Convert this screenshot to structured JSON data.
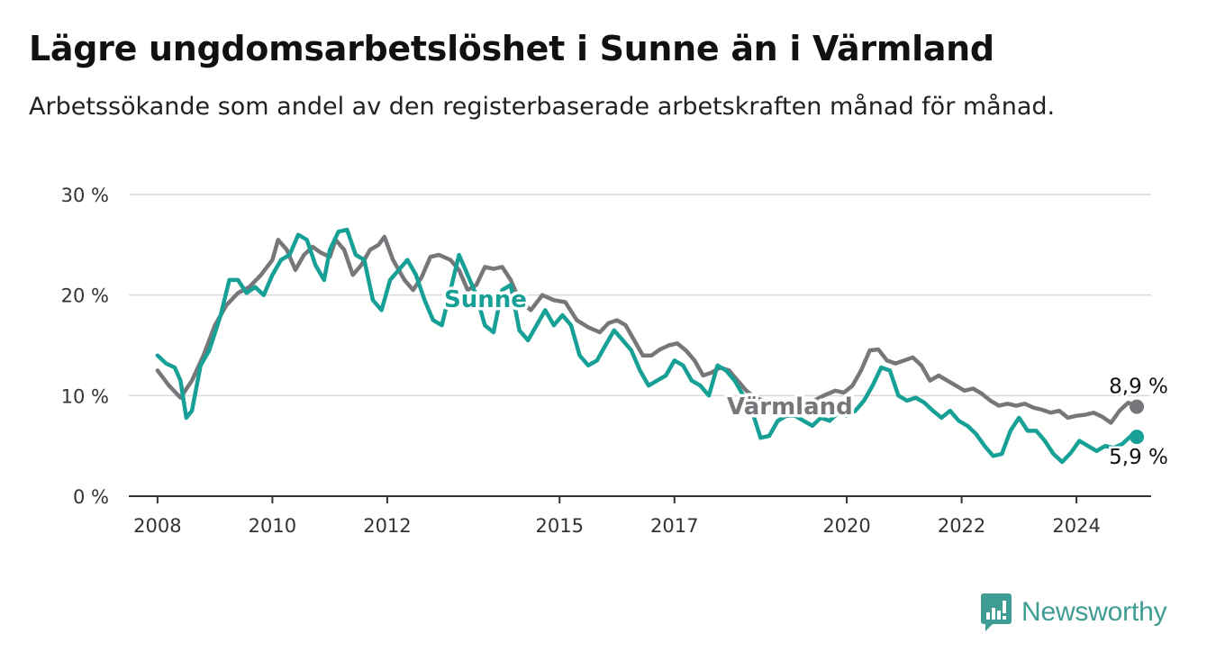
{
  "header": {
    "title": "Lägre ungdomsarbetslöshet i Sunne än i Värmland",
    "subtitle": "Arbetssökande som andel av den registerbaserade arbetskraften månad för månad."
  },
  "brand": {
    "name": "Newsworthy",
    "icon": "newsworthy-logo-icon",
    "color": "#3f9c93"
  },
  "chart_data": {
    "type": "line",
    "title": "Lägre ungdomsarbetslöshet i Sunne än i Värmland",
    "subtitle": "Arbetssökande som andel av den registerbaserade arbetskraften månad för månad.",
    "xlabel": "",
    "ylabel": "",
    "ylim": [
      0,
      30
    ],
    "yticks": [
      0,
      10,
      20,
      30
    ],
    "ytick_labels": [
      "0 %",
      "10 %",
      "20 %",
      "30 %"
    ],
    "xlim": [
      2007.5,
      2025.3
    ],
    "xticks": [
      2008,
      2010,
      2012,
      2015,
      2017,
      2020,
      2022,
      2024
    ],
    "xtick_labels": [
      "2008",
      "2010",
      "2012",
      "2015",
      "2017",
      "2020",
      "2022",
      "2024"
    ],
    "grid": true,
    "legend": "direct-labels",
    "series": [
      {
        "name": "Värmland",
        "color": "#77777b",
        "end_label": "8,9 %",
        "points": [
          [
            2008.0,
            12.5
          ],
          [
            2008.2,
            11.0
          ],
          [
            2008.4,
            9.8
          ],
          [
            2008.6,
            11.5
          ],
          [
            2008.8,
            14.0
          ],
          [
            2009.0,
            17.0
          ],
          [
            2009.2,
            19.0
          ],
          [
            2009.4,
            20.2
          ],
          [
            2009.6,
            20.8
          ],
          [
            2009.8,
            22.0
          ],
          [
            2010.0,
            23.5
          ],
          [
            2010.1,
            25.5
          ],
          [
            2010.25,
            24.5
          ],
          [
            2010.4,
            22.5
          ],
          [
            2010.55,
            24.0
          ],
          [
            2010.7,
            24.8
          ],
          [
            2010.85,
            24.2
          ],
          [
            2011.0,
            23.8
          ],
          [
            2011.1,
            25.5
          ],
          [
            2011.25,
            24.5
          ],
          [
            2011.4,
            22.0
          ],
          [
            2011.55,
            23.0
          ],
          [
            2011.7,
            24.5
          ],
          [
            2011.85,
            25.0
          ],
          [
            2011.95,
            25.8
          ],
          [
            2012.1,
            23.5
          ],
          [
            2012.3,
            21.5
          ],
          [
            2012.45,
            20.5
          ],
          [
            2012.6,
            21.8
          ],
          [
            2012.75,
            23.8
          ],
          [
            2012.9,
            24.0
          ],
          [
            2013.1,
            23.5
          ],
          [
            2013.25,
            22.5
          ],
          [
            2013.4,
            20.5
          ],
          [
            2013.55,
            21.0
          ],
          [
            2013.7,
            22.8
          ],
          [
            2013.85,
            22.6
          ],
          [
            2014.0,
            22.8
          ],
          [
            2014.15,
            21.5
          ],
          [
            2014.3,
            19.5
          ],
          [
            2014.5,
            18.5
          ],
          [
            2014.7,
            20.0
          ],
          [
            2014.9,
            19.5
          ],
          [
            2015.1,
            19.3
          ],
          [
            2015.3,
            17.5
          ],
          [
            2015.5,
            16.8
          ],
          [
            2015.7,
            16.3
          ],
          [
            2015.85,
            17.2
          ],
          [
            2016.0,
            17.5
          ],
          [
            2016.15,
            17.0
          ],
          [
            2016.3,
            15.5
          ],
          [
            2016.45,
            14.0
          ],
          [
            2016.6,
            14.0
          ],
          [
            2016.75,
            14.6
          ],
          [
            2016.9,
            15.0
          ],
          [
            2017.05,
            15.2
          ],
          [
            2017.2,
            14.5
          ],
          [
            2017.35,
            13.5
          ],
          [
            2017.5,
            12.0
          ],
          [
            2017.65,
            12.3
          ],
          [
            2017.8,
            12.8
          ],
          [
            2017.95,
            12.5
          ],
          [
            2018.1,
            11.5
          ],
          [
            2018.25,
            10.5
          ],
          [
            2018.4,
            9.8
          ],
          [
            2018.55,
            9.5
          ],
          [
            2018.7,
            9.0
          ],
          [
            2018.85,
            9.2
          ],
          [
            2019.0,
            9.3
          ],
          [
            2019.2,
            9.5
          ],
          [
            2019.4,
            9.4
          ],
          [
            2019.6,
            10.0
          ],
          [
            2019.8,
            10.5
          ],
          [
            2019.95,
            10.3
          ],
          [
            2020.1,
            11.0
          ],
          [
            2020.25,
            12.5
          ],
          [
            2020.4,
            14.5
          ],
          [
            2020.55,
            14.6
          ],
          [
            2020.7,
            13.5
          ],
          [
            2020.85,
            13.2
          ],
          [
            2021.0,
            13.5
          ],
          [
            2021.15,
            13.8
          ],
          [
            2021.3,
            13.0
          ],
          [
            2021.45,
            11.5
          ],
          [
            2021.6,
            12.0
          ],
          [
            2021.75,
            11.5
          ],
          [
            2021.9,
            11.0
          ],
          [
            2022.05,
            10.5
          ],
          [
            2022.2,
            10.7
          ],
          [
            2022.35,
            10.2
          ],
          [
            2022.5,
            9.5
          ],
          [
            2022.65,
            9.0
          ],
          [
            2022.8,
            9.2
          ],
          [
            2022.95,
            9.0
          ],
          [
            2023.1,
            9.2
          ],
          [
            2023.25,
            8.8
          ],
          [
            2023.4,
            8.6
          ],
          [
            2023.55,
            8.3
          ],
          [
            2023.7,
            8.5
          ],
          [
            2023.85,
            7.8
          ],
          [
            2024.0,
            8.0
          ],
          [
            2024.15,
            8.1
          ],
          [
            2024.3,
            8.3
          ],
          [
            2024.45,
            7.9
          ],
          [
            2024.6,
            7.3
          ],
          [
            2024.75,
            8.5
          ],
          [
            2024.9,
            9.3
          ],
          [
            2025.05,
            8.9
          ]
        ]
      },
      {
        "name": "Sunne",
        "color": "#16a096",
        "end_label": "5,9 %",
        "points": [
          [
            2008.0,
            14.0
          ],
          [
            2008.15,
            13.2
          ],
          [
            2008.3,
            12.8
          ],
          [
            2008.4,
            11.5
          ],
          [
            2008.5,
            7.8
          ],
          [
            2008.6,
            8.5
          ],
          [
            2008.75,
            13.0
          ],
          [
            2008.9,
            14.5
          ],
          [
            2009.1,
            18.0
          ],
          [
            2009.25,
            21.5
          ],
          [
            2009.4,
            21.5
          ],
          [
            2009.55,
            20.2
          ],
          [
            2009.7,
            20.8
          ],
          [
            2009.85,
            20.0
          ],
          [
            2010.0,
            22.0
          ],
          [
            2010.15,
            23.5
          ],
          [
            2010.3,
            24.0
          ],
          [
            2010.45,
            26.0
          ],
          [
            2010.6,
            25.5
          ],
          [
            2010.75,
            23.0
          ],
          [
            2010.9,
            21.5
          ],
          [
            2011.0,
            24.5
          ],
          [
            2011.15,
            26.3
          ],
          [
            2011.3,
            26.5
          ],
          [
            2011.45,
            24.0
          ],
          [
            2011.6,
            23.5
          ],
          [
            2011.75,
            19.5
          ],
          [
            2011.9,
            18.5
          ],
          [
            2012.05,
            21.5
          ],
          [
            2012.2,
            22.5
          ],
          [
            2012.35,
            23.5
          ],
          [
            2012.5,
            22.0
          ],
          [
            2012.65,
            19.5
          ],
          [
            2012.8,
            17.5
          ],
          [
            2012.95,
            17.0
          ],
          [
            2013.1,
            20.5
          ],
          [
            2013.25,
            24.0
          ],
          [
            2013.4,
            22.0
          ],
          [
            2013.55,
            20.0
          ],
          [
            2013.7,
            17.0
          ],
          [
            2013.85,
            16.3
          ],
          [
            2014.0,
            20.5
          ],
          [
            2014.15,
            21.0
          ],
          [
            2014.3,
            16.5
          ],
          [
            2014.45,
            15.5
          ],
          [
            2014.6,
            17.0
          ],
          [
            2014.75,
            18.5
          ],
          [
            2014.9,
            17.0
          ],
          [
            2015.05,
            18.0
          ],
          [
            2015.2,
            17.0
          ],
          [
            2015.35,
            14.0
          ],
          [
            2015.5,
            13.0
          ],
          [
            2015.65,
            13.5
          ],
          [
            2015.8,
            15.0
          ],
          [
            2015.95,
            16.5
          ],
          [
            2016.1,
            15.5
          ],
          [
            2016.25,
            14.5
          ],
          [
            2016.4,
            12.5
          ],
          [
            2016.55,
            11.0
          ],
          [
            2016.7,
            11.5
          ],
          [
            2016.85,
            12.0
          ],
          [
            2017.0,
            13.5
          ],
          [
            2017.15,
            13.0
          ],
          [
            2017.3,
            11.5
          ],
          [
            2017.45,
            11.0
          ],
          [
            2017.6,
            10.0
          ],
          [
            2017.75,
            13.0
          ],
          [
            2017.9,
            12.5
          ],
          [
            2018.05,
            11.5
          ],
          [
            2018.2,
            10.0
          ],
          [
            2018.35,
            8.5
          ],
          [
            2018.5,
            5.8
          ],
          [
            2018.65,
            6.0
          ],
          [
            2018.8,
            7.5
          ],
          [
            2018.95,
            8.0
          ],
          [
            2019.1,
            8.0
          ],
          [
            2019.25,
            7.5
          ],
          [
            2019.4,
            7.0
          ],
          [
            2019.55,
            7.8
          ],
          [
            2019.7,
            7.5
          ],
          [
            2019.85,
            8.3
          ],
          [
            2020.0,
            8.0
          ],
          [
            2020.15,
            8.5
          ],
          [
            2020.3,
            9.5
          ],
          [
            2020.45,
            11.0
          ],
          [
            2020.6,
            12.8
          ],
          [
            2020.75,
            12.5
          ],
          [
            2020.9,
            10.0
          ],
          [
            2021.05,
            9.5
          ],
          [
            2021.2,
            9.8
          ],
          [
            2021.35,
            9.3
          ],
          [
            2021.5,
            8.5
          ],
          [
            2021.65,
            7.8
          ],
          [
            2021.8,
            8.5
          ],
          [
            2021.95,
            7.5
          ],
          [
            2022.1,
            7.0
          ],
          [
            2022.25,
            6.2
          ],
          [
            2022.4,
            5.0
          ],
          [
            2022.55,
            4.0
          ],
          [
            2022.7,
            4.2
          ],
          [
            2022.85,
            6.5
          ],
          [
            2023.0,
            7.8
          ],
          [
            2023.15,
            6.5
          ],
          [
            2023.3,
            6.5
          ],
          [
            2023.45,
            5.5
          ],
          [
            2023.6,
            4.2
          ],
          [
            2023.75,
            3.4
          ],
          [
            2023.9,
            4.3
          ],
          [
            2024.05,
            5.5
          ],
          [
            2024.2,
            5.0
          ],
          [
            2024.35,
            4.5
          ],
          [
            2024.5,
            5.0
          ],
          [
            2024.65,
            4.8
          ],
          [
            2024.8,
            5.2
          ],
          [
            2024.95,
            6.0
          ],
          [
            2025.05,
            5.9
          ]
        ]
      }
    ]
  }
}
